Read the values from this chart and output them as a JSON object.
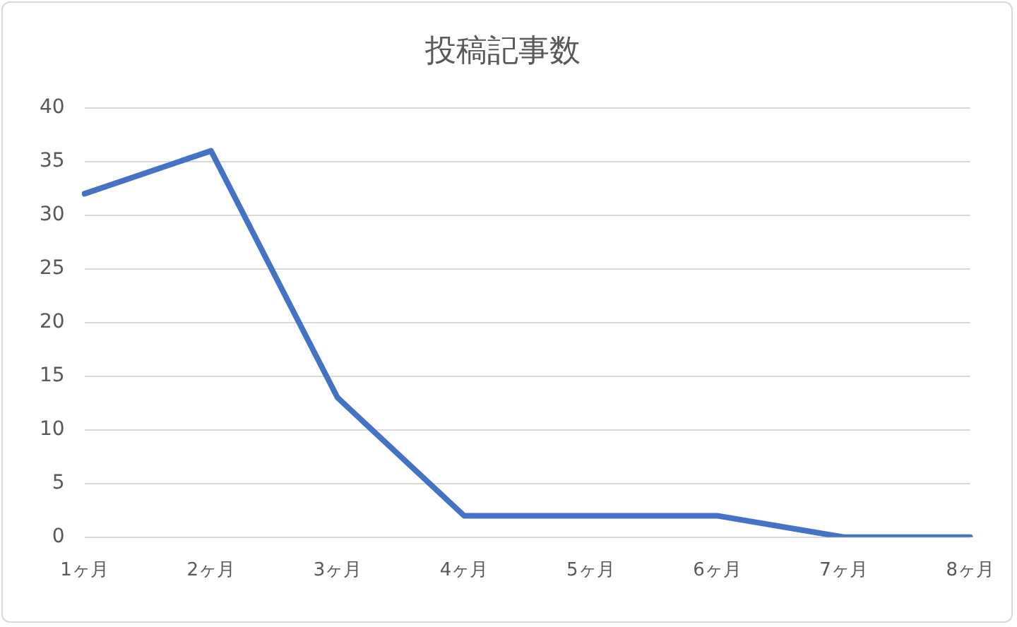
{
  "chart_data": {
    "type": "line",
    "title": "投稿記事数",
    "categories": [
      "1ヶ月",
      "2ヶ月",
      "3ヶ月",
      "4ヶ月",
      "5ヶ月",
      "6ヶ月",
      "7ヶ月",
      "8ヶ月"
    ],
    "series": [
      {
        "color": "#4472c4",
        "values": [
          32,
          36,
          13,
          2,
          2,
          2,
          0,
          0
        ]
      }
    ],
    "ylim": [
      0,
      40
    ],
    "yticks": [
      0,
      5,
      10,
      15,
      20,
      25,
      30,
      35,
      40
    ],
    "grid": "y",
    "legend": false,
    "marker": "none",
    "line_style": "solid"
  }
}
